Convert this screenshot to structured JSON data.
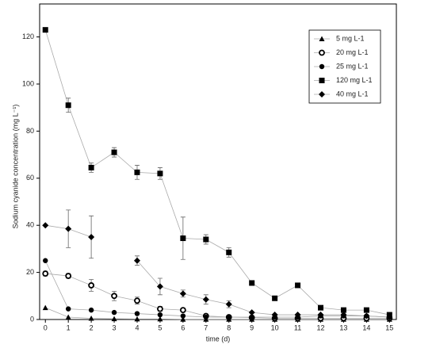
{
  "chart_data": {
    "type": "line",
    "x_label": "time (d)",
    "y_label": "Sodium cyanide concentration (mg L⁻¹)",
    "x": [
      0,
      1,
      2,
      3,
      4,
      5,
      6,
      7,
      8,
      9,
      10,
      11,
      12,
      13,
      14,
      15
    ],
    "xlim": [
      -0.25,
      15.3
    ],
    "ylim": [
      0,
      134
    ],
    "xticks": [
      0,
      1,
      2,
      3,
      4,
      5,
      6,
      7,
      8,
      9,
      10,
      11,
      12,
      13,
      14,
      15
    ],
    "yticks": [
      0,
      20,
      40,
      60,
      80,
      100,
      120
    ],
    "legend": "upper right",
    "series": [
      {
        "name": "5 mg L-1",
        "color": "#000",
        "marker": "triangle",
        "values": [
          5,
          1,
          0.5,
          0.3,
          0.2,
          0.2,
          0.1,
          0.1,
          0.1,
          0.1,
          0.1,
          0.1,
          0.1,
          0.1,
          0.1,
          0.1
        ],
        "errors": [
          null,
          null,
          null,
          null,
          null,
          null,
          null,
          null,
          null,
          null,
          null,
          null,
          null,
          null,
          null,
          null
        ]
      },
      {
        "name": "20 mg L-1",
        "color": "#000",
        "marker": "circle-open",
        "values": [
          19.5,
          18.5,
          14.5,
          10,
          8,
          4.5,
          4,
          1.5,
          1,
          0.8,
          0.5,
          0.5,
          0.5,
          0.5,
          0.5,
          0.5
        ],
        "errors": [
          1,
          1,
          2.5,
          2,
          1.5,
          1,
          0.8,
          null,
          null,
          null,
          null,
          null,
          null,
          null,
          null,
          null
        ]
      },
      {
        "name": "25 mg L-1",
        "color": "#000",
        "marker": "circle",
        "values": [
          25,
          4.5,
          4,
          3,
          2.5,
          2,
          1.5,
          1,
          1,
          1,
          1,
          1,
          1.5,
          1.5,
          1.5,
          1
        ],
        "errors": [
          null,
          null,
          null,
          null,
          null,
          null,
          null,
          null,
          null,
          null,
          null,
          null,
          null,
          null,
          null,
          null
        ]
      },
      {
        "name": "120 mg L-1",
        "color": "#000",
        "marker": "square",
        "values": [
          123,
          91,
          64.5,
          71,
          62.5,
          62,
          34.5,
          34,
          28.5,
          15.5,
          9,
          14.5,
          5,
          4,
          4,
          2
        ],
        "errors": [
          null,
          3,
          2,
          2,
          3,
          2.5,
          9,
          2,
          2,
          null,
          null,
          null,
          null,
          null,
          null,
          null
        ]
      },
      {
        "name": "40 mg L-1",
        "color": "#000",
        "marker": "diamond",
        "values": [
          40,
          38.5,
          35,
          null,
          25,
          14,
          11,
          8.5,
          6.5,
          3,
          2,
          2,
          2,
          2,
          1.5,
          1
        ],
        "errors": [
          null,
          8,
          9,
          null,
          2,
          3.5,
          1.5,
          2,
          1.5,
          null,
          null,
          null,
          null,
          null,
          null,
          null
        ]
      }
    ]
  }
}
